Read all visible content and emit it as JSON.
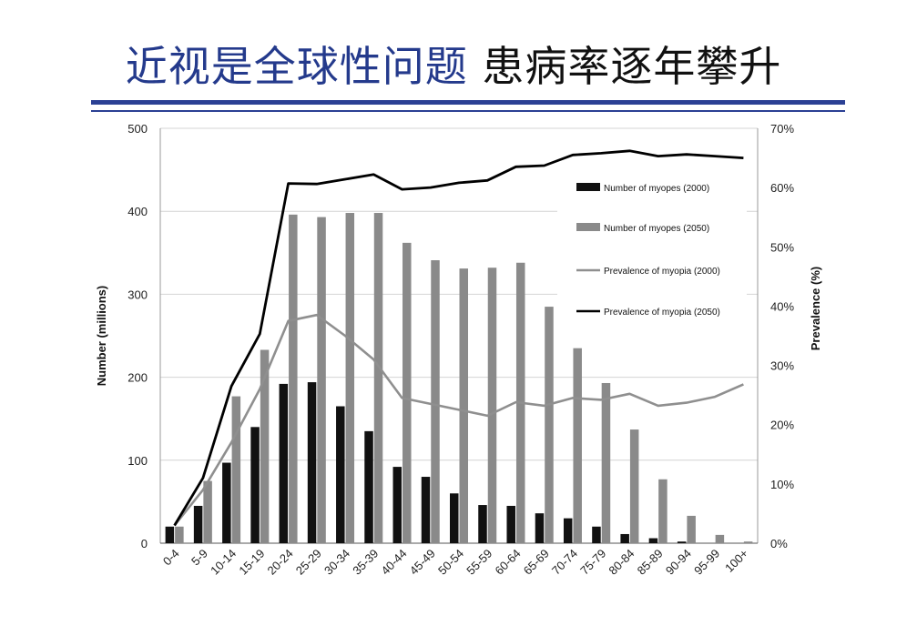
{
  "title_blue": "近视是全球性问题",
  "title_black": "患病率逐年攀升",
  "colors": {
    "title_blue": "#243a8c",
    "bar_2000": "#111111",
    "bar_2050": "#8a8a8a",
    "line_2000": "#8f8f8f",
    "line_2050": "#000000"
  },
  "chart_data": {
    "type": "bar",
    "xlabel": "",
    "ylabel": "Number (millions)",
    "y2label": "Prevalence (%)",
    "ylim": [
      0,
      500
    ],
    "yticks": [
      "0",
      "100",
      "200",
      "300",
      "400",
      "500"
    ],
    "y2lim": [
      0,
      70
    ],
    "y2ticks": [
      "0%",
      "10%",
      "20%",
      "30%",
      "40%",
      "50%",
      "60%",
      "70%"
    ],
    "grid": true,
    "legend_position": "upper-right",
    "categories": [
      "0-4",
      "5-9",
      "10-14",
      "15-19",
      "20-24",
      "25-29",
      "30-34",
      "35-39",
      "40-44",
      "45-49",
      "50-54",
      "55-59",
      "60-64",
      "65-69",
      "70-74",
      "75-79",
      "80-84",
      "85-89",
      "90-94",
      "95-99",
      "100+"
    ],
    "series": [
      {
        "name": "Number of myopes (2000)",
        "kind": "bar",
        "axis": "left",
        "values": [
          20,
          45,
          97,
          140,
          192,
          194,
          165,
          135,
          92,
          80,
          60,
          46,
          45,
          36,
          30,
          20,
          11,
          6,
          2,
          0,
          0
        ]
      },
      {
        "name": "Number of myopes (2050)",
        "kind": "bar",
        "axis": "left",
        "values": [
          20,
          75,
          177,
          233,
          396,
          393,
          398,
          398,
          362,
          341,
          331,
          332,
          338,
          285,
          235,
          193,
          137,
          77,
          33,
          10,
          2
        ]
      },
      {
        "name": "Prevalence of myopia (2000)",
        "kind": "line",
        "axis": "right",
        "values": [
          3,
          9,
          17,
          26,
          37.5,
          38.5,
          35,
          31,
          24.5,
          23.5,
          22.5,
          21.5,
          23.8,
          23.2,
          24.5,
          24.2,
          25.2,
          23.2,
          23.7,
          24.7,
          26.8
        ]
      },
      {
        "name": "Prevalence of myopia (2050)",
        "kind": "line",
        "axis": "right",
        "values": [
          3,
          11,
          26.5,
          35.3,
          60.7,
          60.6,
          61.4,
          62.2,
          59.7,
          60,
          60.8,
          61.2,
          63.5,
          63.7,
          65.5,
          65.8,
          66.2,
          65.3,
          65.6,
          65.3,
          65
        ]
      }
    ]
  }
}
